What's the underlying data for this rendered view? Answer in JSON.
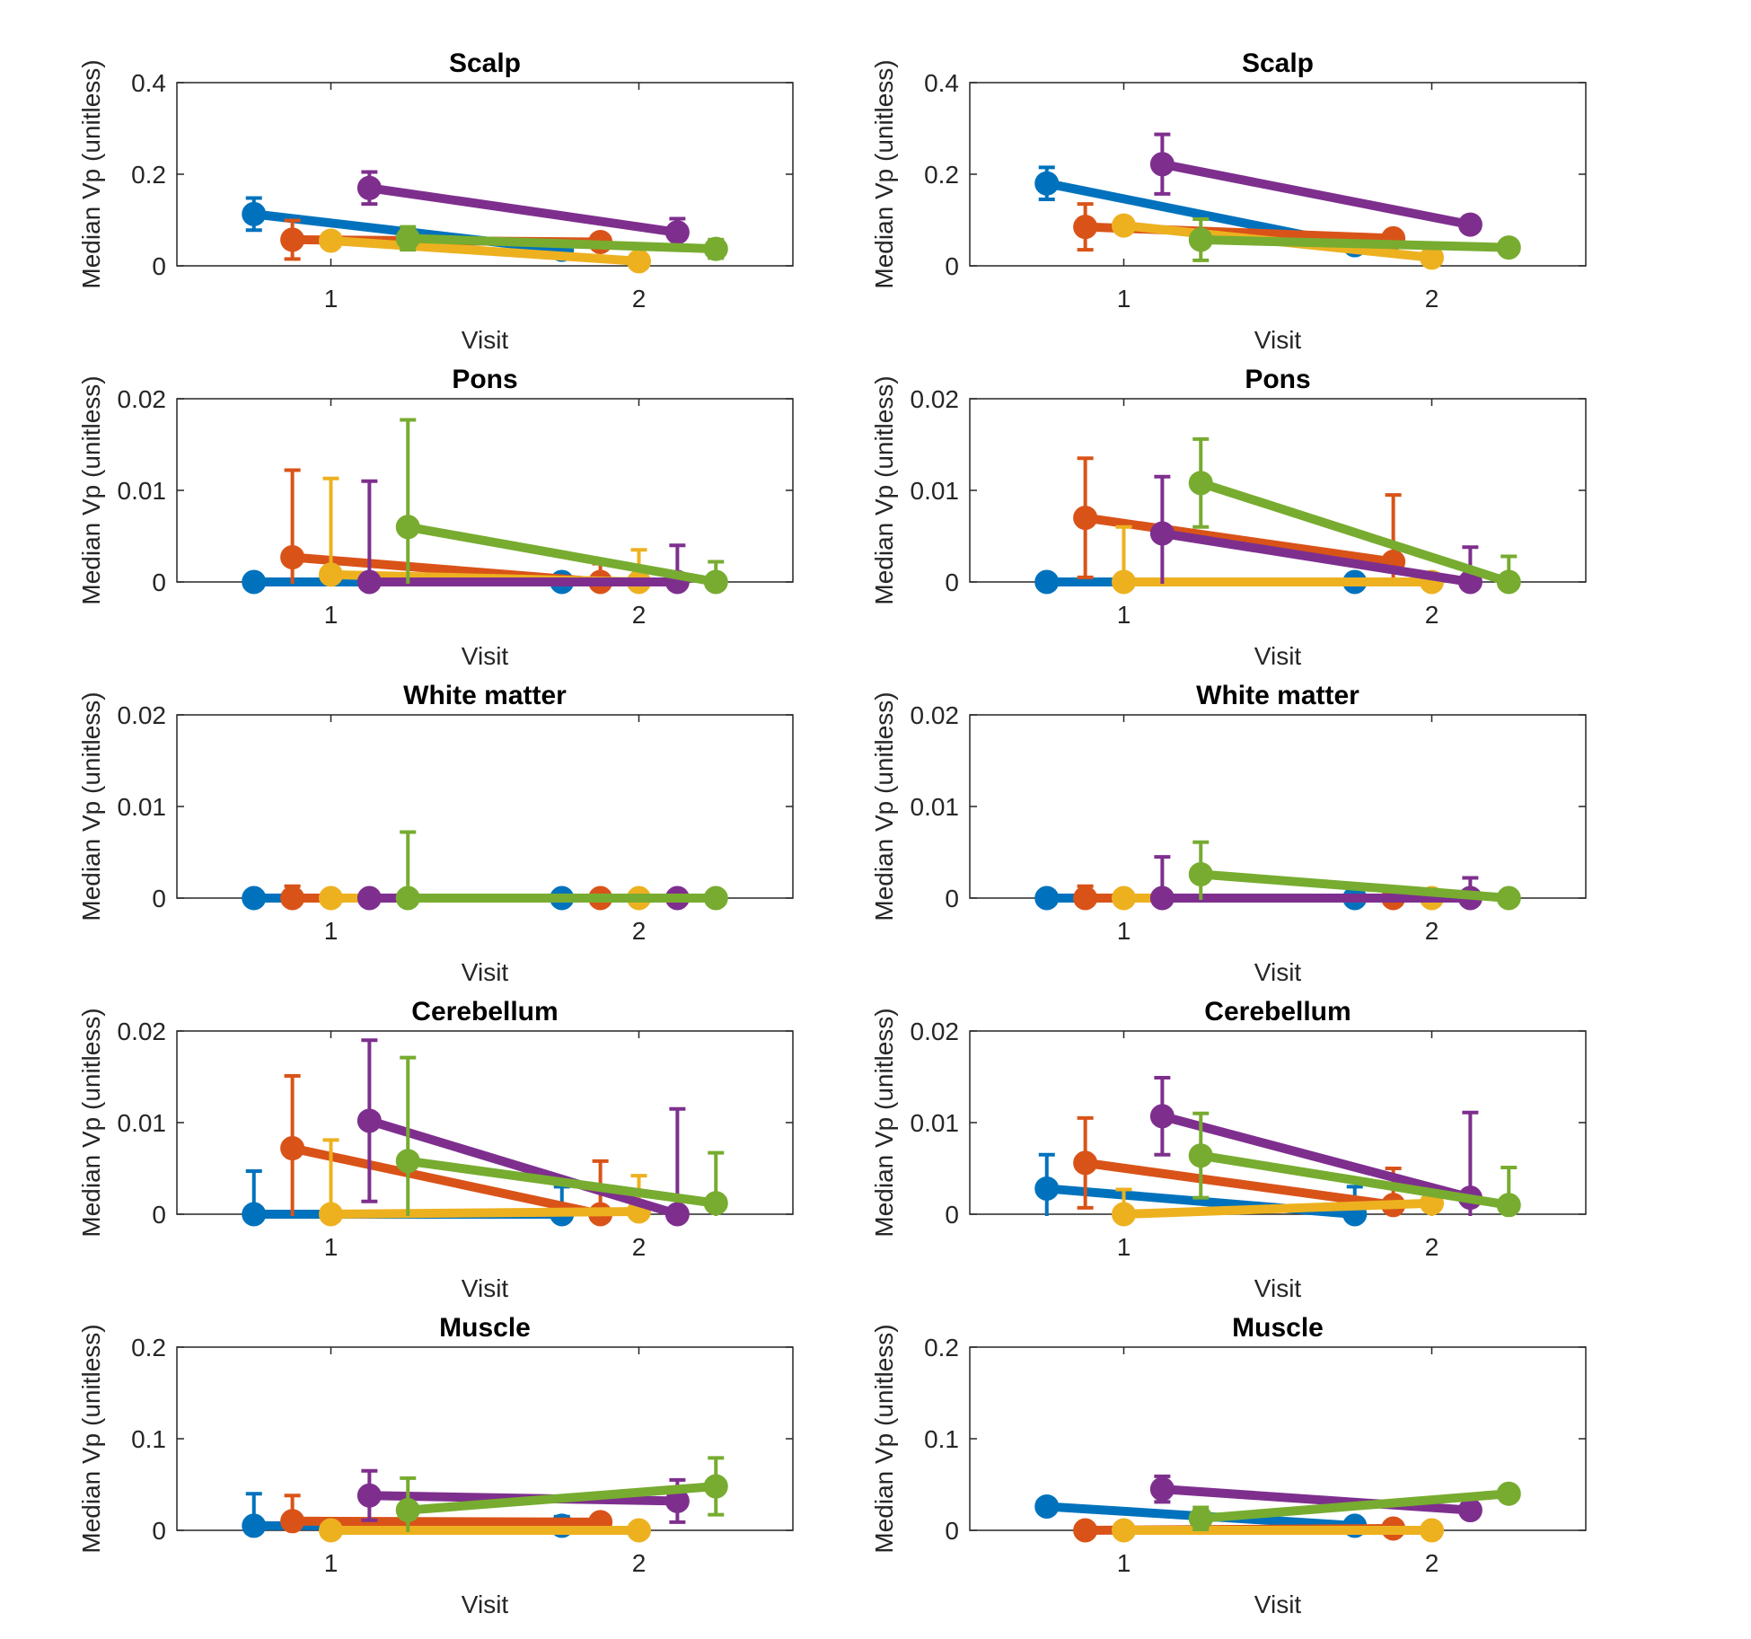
{
  "figure": {
    "xlabel": "Visit",
    "ylabel": "Median Vp (unitless)",
    "series_colors": [
      "#0072BD",
      "#D95319",
      "#EDB120",
      "#7E2F8E",
      "#77AC30"
    ],
    "x_ticks": [
      "1",
      "2"
    ],
    "xlim": [
      0.5,
      2.5
    ]
  },
  "chart_data": [
    {
      "type": "line",
      "title": "Scalp",
      "column": "left",
      "row": 0,
      "ylim": [
        0,
        0.4
      ],
      "y_ticks": [
        "0",
        "0.2",
        "0.4"
      ],
      "series": [
        {
          "x": [
            0.75,
            1.75
          ],
          "y": [
            0.113,
            0.035
          ],
          "err": [
            0.035,
            0.005
          ]
        },
        {
          "x": [
            0.875,
            1.875
          ],
          "y": [
            0.057,
            0.052
          ],
          "err": [
            0.042,
            0.01
          ]
        },
        {
          "x": [
            1.0,
            2.0
          ],
          "y": [
            0.055,
            0.01
          ],
          "err": [
            0.01,
            0.005
          ]
        },
        {
          "x": [
            1.125,
            2.125
          ],
          "y": [
            0.17,
            0.073
          ],
          "err": [
            0.035,
            0.03
          ]
        },
        {
          "x": [
            1.25,
            2.25
          ],
          "y": [
            0.06,
            0.037
          ],
          "err": [
            0.025,
            0.02
          ]
        }
      ]
    },
    {
      "type": "line",
      "title": "Scalp",
      "column": "right",
      "row": 0,
      "ylim": [
        0,
        0.4
      ],
      "y_ticks": [
        "0",
        "0.2",
        "0.4"
      ],
      "series": [
        {
          "x": [
            0.75,
            1.75
          ],
          "y": [
            0.18,
            0.045
          ],
          "err": [
            0.035,
            0.005
          ]
        },
        {
          "x": [
            0.875,
            1.875
          ],
          "y": [
            0.085,
            0.06
          ],
          "err": [
            0.05,
            0.015
          ]
        },
        {
          "x": [
            1.0,
            2.0
          ],
          "y": [
            0.088,
            0.018
          ],
          "err": [
            0.01,
            0.005
          ]
        },
        {
          "x": [
            1.125,
            2.125
          ],
          "y": [
            0.222,
            0.09
          ],
          "err": [
            0.065,
            0.015
          ]
        },
        {
          "x": [
            1.25,
            2.25
          ],
          "y": [
            0.057,
            0.04
          ],
          "err": [
            0.045,
            0.015
          ]
        }
      ]
    },
    {
      "type": "line",
      "title": "Pons",
      "column": "left",
      "row": 1,
      "ylim": [
        0,
        0.02
      ],
      "y_ticks": [
        "0",
        "0.01",
        "0.02"
      ],
      "series": [
        {
          "x": [
            0.75,
            1.75
          ],
          "y": [
            0,
            0
          ],
          "err": [
            0,
            0
          ]
        },
        {
          "x": [
            0.875,
            1.875
          ],
          "y": [
            0.0027,
            0
          ],
          "err": [
            0.0095,
            0.002
          ]
        },
        {
          "x": [
            1.0,
            2.0
          ],
          "y": [
            0.0008,
            0
          ],
          "err": [
            0.0105,
            0.0035
          ]
        },
        {
          "x": [
            1.125,
            2.125
          ],
          "y": [
            0,
            0
          ],
          "err": [
            0.011,
            0.004
          ]
        },
        {
          "x": [
            1.25,
            2.25
          ],
          "y": [
            0.006,
            0
          ],
          "err": [
            0.0117,
            0.0022
          ]
        }
      ]
    },
    {
      "type": "line",
      "title": "Pons",
      "column": "right",
      "row": 1,
      "ylim": [
        0,
        0.02
      ],
      "y_ticks": [
        "0",
        "0.01",
        "0.02"
      ],
      "series": [
        {
          "x": [
            0.75,
            1.75
          ],
          "y": [
            0,
            0
          ],
          "err": [
            0,
            0
          ]
        },
        {
          "x": [
            0.875,
            1.875
          ],
          "y": [
            0.007,
            0.0022
          ],
          "err": [
            0.0065,
            0.0073
          ]
        },
        {
          "x": [
            1.0,
            2.0
          ],
          "y": [
            0,
            0
          ],
          "err": [
            0.006,
            0
          ]
        },
        {
          "x": [
            1.125,
            2.125
          ],
          "y": [
            0.0053,
            0
          ],
          "err": [
            0.0062,
            0.0038
          ]
        },
        {
          "x": [
            1.25,
            2.25
          ],
          "y": [
            0.0108,
            0
          ],
          "err": [
            0.0048,
            0.0028
          ]
        }
      ]
    },
    {
      "type": "line",
      "title": "White matter",
      "column": "left",
      "row": 2,
      "ylim": [
        0,
        0.02
      ],
      "y_ticks": [
        "0",
        "0.01",
        "0.02"
      ],
      "series": [
        {
          "x": [
            0.75,
            1.75
          ],
          "y": [
            0,
            0
          ],
          "err": [
            0,
            0
          ]
        },
        {
          "x": [
            0.875,
            1.875
          ],
          "y": [
            0,
            0
          ],
          "err": [
            0.0013,
            0
          ]
        },
        {
          "x": [
            1.0,
            2.0
          ],
          "y": [
            0,
            0
          ],
          "err": [
            0,
            0
          ]
        },
        {
          "x": [
            1.125,
            2.125
          ],
          "y": [
            0,
            0
          ],
          "err": [
            0,
            0
          ]
        },
        {
          "x": [
            1.25,
            2.25
          ],
          "y": [
            0,
            0
          ],
          "err": [
            0.0072,
            0
          ]
        }
      ]
    },
    {
      "type": "line",
      "title": "White matter",
      "column": "right",
      "row": 2,
      "ylim": [
        0,
        0.02
      ],
      "y_ticks": [
        "0",
        "0.01",
        "0.02"
      ],
      "series": [
        {
          "x": [
            0.75,
            1.75
          ],
          "y": [
            0,
            0
          ],
          "err": [
            0,
            0
          ]
        },
        {
          "x": [
            0.875,
            1.875
          ],
          "y": [
            0,
            0
          ],
          "err": [
            0.0013,
            0
          ]
        },
        {
          "x": [
            1.0,
            2.0
          ],
          "y": [
            0,
            0
          ],
          "err": [
            0,
            0
          ]
        },
        {
          "x": [
            1.125,
            2.125
          ],
          "y": [
            0,
            0
          ],
          "err": [
            0.0045,
            0.0022
          ]
        },
        {
          "x": [
            1.25,
            2.25
          ],
          "y": [
            0.0026,
            0
          ],
          "err": [
            0.0035,
            0
          ]
        }
      ]
    },
    {
      "type": "line",
      "title": "Cerebellum",
      "column": "left",
      "row": 3,
      "ylim": [
        0,
        0.02
      ],
      "y_ticks": [
        "0",
        "0.01",
        "0.02"
      ],
      "series": [
        {
          "x": [
            0.75,
            1.75
          ],
          "y": [
            0,
            0
          ],
          "err": [
            0.0047,
            0.003
          ]
        },
        {
          "x": [
            0.875,
            1.875
          ],
          "y": [
            0.0072,
            0
          ],
          "err": [
            0.0079,
            0.0058
          ]
        },
        {
          "x": [
            1.0,
            2.0
          ],
          "y": [
            0,
            0.0003
          ],
          "err": [
            0.0081,
            0.0039
          ]
        },
        {
          "x": [
            1.125,
            2.125
          ],
          "y": [
            0.0102,
            0
          ],
          "err": [
            0.0088,
            0.0115
          ]
        },
        {
          "x": [
            1.25,
            2.25
          ],
          "y": [
            0.0058,
            0.0012
          ],
          "err": [
            0.0113,
            0.0055
          ]
        }
      ]
    },
    {
      "type": "line",
      "title": "Cerebellum",
      "column": "right",
      "row": 3,
      "ylim": [
        0,
        0.02
      ],
      "y_ticks": [
        "0",
        "0.01",
        "0.02"
      ],
      "series": [
        {
          "x": [
            0.75,
            1.75
          ],
          "y": [
            0.0028,
            0
          ],
          "err": [
            0.0037,
            0.003
          ]
        },
        {
          "x": [
            0.875,
            1.875
          ],
          "y": [
            0.0056,
            0.001
          ],
          "err": [
            0.0049,
            0.004
          ]
        },
        {
          "x": [
            1.0,
            2.0
          ],
          "y": [
            0,
            0.0012
          ],
          "err": [
            0.0027,
            0.0015
          ]
        },
        {
          "x": [
            1.125,
            2.125
          ],
          "y": [
            0.0107,
            0.0018
          ],
          "err": [
            0.0042,
            0.0093
          ]
        },
        {
          "x": [
            1.25,
            2.25
          ],
          "y": [
            0.0064,
            0.001
          ],
          "err": [
            0.0046,
            0.0041
          ]
        }
      ]
    },
    {
      "type": "line",
      "title": "Muscle",
      "column": "left",
      "row": 4,
      "ylim": [
        0,
        0.2
      ],
      "y_ticks": [
        "0",
        "0.1",
        "0.2"
      ],
      "series": [
        {
          "x": [
            0.75,
            1.75
          ],
          "y": [
            0.005,
            0.005
          ],
          "err": [
            0.035,
            0.01
          ]
        },
        {
          "x": [
            0.875,
            1.875
          ],
          "y": [
            0.01,
            0.009
          ],
          "err": [
            0.028,
            0.005
          ]
        },
        {
          "x": [
            1.0,
            2.0
          ],
          "y": [
            0,
            0
          ],
          "err": [
            0,
            0
          ]
        },
        {
          "x": [
            1.125,
            2.125
          ],
          "y": [
            0.038,
            0.032
          ],
          "err": [
            0.027,
            0.023
          ]
        },
        {
          "x": [
            1.25,
            2.25
          ],
          "y": [
            0.022,
            0.048
          ],
          "err": [
            0.035,
            0.031
          ]
        }
      ]
    },
    {
      "type": "line",
      "title": "Muscle",
      "column": "right",
      "row": 4,
      "ylim": [
        0,
        0.2
      ],
      "y_ticks": [
        "0",
        "0.1",
        "0.2"
      ],
      "series": [
        {
          "x": [
            0.75,
            1.75
          ],
          "y": [
            0.026,
            0.005
          ],
          "err": [
            0.004,
            0.004
          ]
        },
        {
          "x": [
            0.875,
            1.875
          ],
          "y": [
            0,
            0.002
          ],
          "err": [
            0,
            0
          ]
        },
        {
          "x": [
            1.0,
            2.0
          ],
          "y": [
            0,
            0
          ],
          "err": [
            0,
            0
          ]
        },
        {
          "x": [
            1.125,
            2.125
          ],
          "y": [
            0.045,
            0.022
          ],
          "err": [
            0.014,
            0.004
          ]
        },
        {
          "x": [
            1.25,
            2.25
          ],
          "y": [
            0.013,
            0.04
          ],
          "err": [
            0.012,
            0.005
          ]
        }
      ]
    }
  ]
}
